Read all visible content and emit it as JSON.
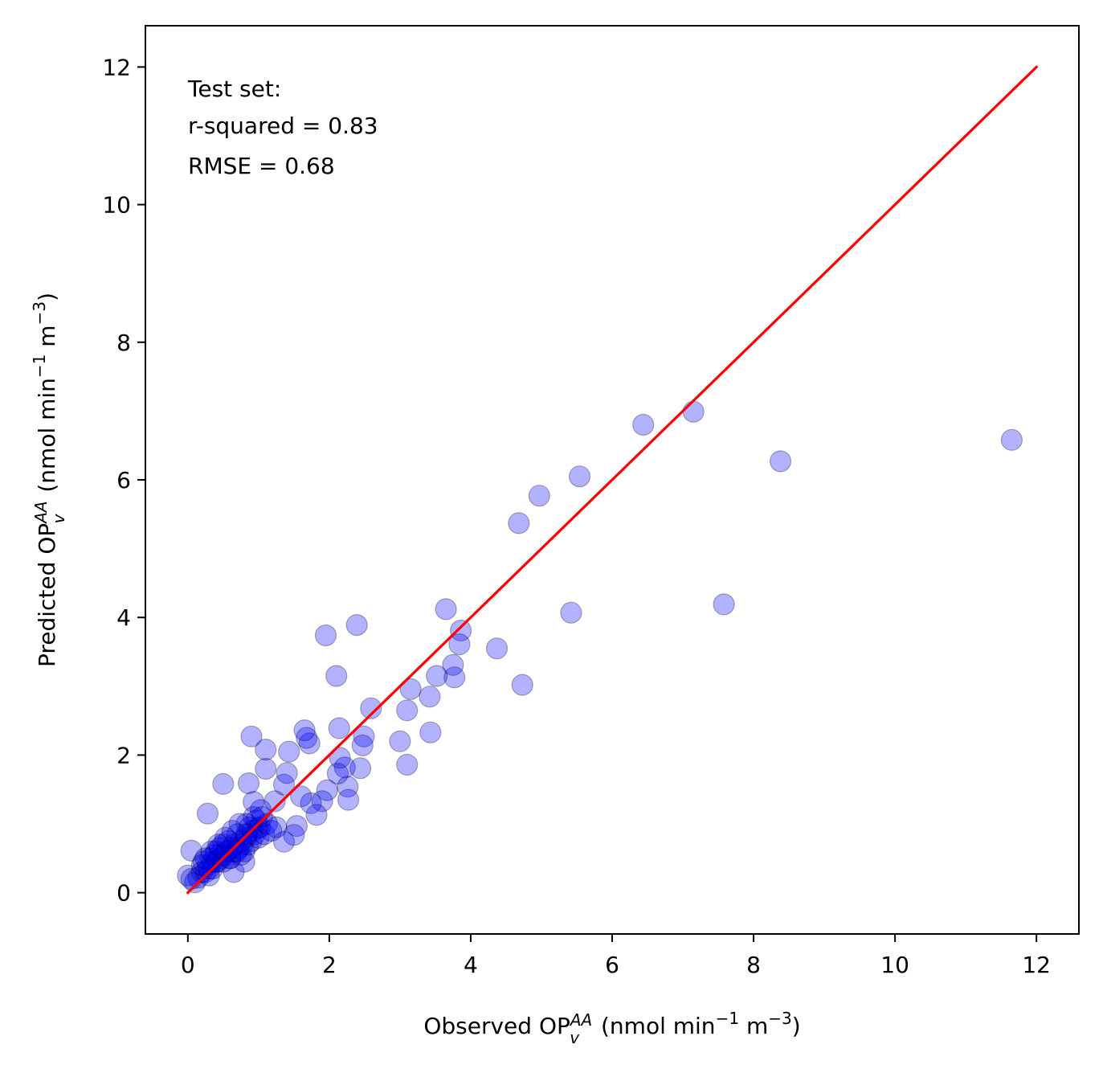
{
  "chart_data": {
    "type": "scatter",
    "xlabel": {
      "pre": "Observed OP",
      "sup": "AA",
      "sub": "v",
      "unit_a": " (nmol min",
      "unit_exp1": "−1",
      "unit_b": " m",
      "unit_exp2": "−3",
      "unit_c": ")"
    },
    "ylabel": {
      "pre": "Predicted OP",
      "sup": "AA",
      "sub": "v",
      "unit_a": " (nmol min",
      "unit_exp1": "−1",
      "unit_b": " m",
      "unit_exp2": "−3",
      "unit_c": ")"
    },
    "xlim": [
      -0.6,
      12.6
    ],
    "ylim": [
      -0.6,
      12.6
    ],
    "xticks": [
      0,
      2,
      4,
      6,
      8,
      10,
      12
    ],
    "yticks": [
      0,
      2,
      4,
      6,
      8,
      10,
      12
    ],
    "xtick_labels": [
      "0",
      "2",
      "4",
      "6",
      "8",
      "10",
      "12"
    ],
    "ytick_labels": [
      "0",
      "2",
      "4",
      "6",
      "8",
      "10",
      "12"
    ],
    "annotation": [
      "Test set:",
      "r-squared = 0.83",
      "RMSE = 0.68"
    ],
    "grid": false,
    "colors": {
      "points": "#0000ff",
      "line": "#ff0000"
    },
    "identity_line": {
      "x": [
        0,
        12
      ],
      "y": [
        0,
        12
      ]
    },
    "points": {
      "x": [
        11.65,
        8.38,
        7.58,
        7.15,
        6.44,
        5.54,
        5.42,
        4.97,
        4.68,
        4.73,
        4.37,
        3.86,
        3.84,
        3.77,
        3.75,
        3.65,
        3.52,
        3.42,
        3.43,
        3.15,
        3.1,
        3.1,
        3.0,
        2.59,
        2.49,
        2.47,
        2.44,
        2.39,
        2.26,
        2.27,
        2.22,
        2.12,
        2.15,
        2.1,
        2.14,
        1.95,
        1.97,
        1.9,
        1.82,
        1.74,
        1.72,
        1.68,
        1.65,
        1.6,
        1.54,
        1.5,
        1.43,
        1.4,
        1.36,
        1.36,
        1.23,
        1.1,
        1.1,
        0.99,
        0.93,
        0.9,
        0.86,
        0.83,
        0.5,
        0.28,
        0.05
      ],
      "y": [
        6.58,
        6.27,
        4.19,
        6.99,
        6.8,
        6.05,
        4.07,
        5.77,
        5.37,
        3.02,
        3.55,
        3.81,
        3.61,
        3.13,
        3.31,
        4.12,
        3.15,
        2.85,
        2.33,
        2.96,
        2.65,
        1.86,
        2.2,
        2.68,
        2.27,
        2.14,
        1.81,
        3.89,
        1.54,
        1.35,
        1.82,
        1.73,
        1.96,
        3.15,
        2.39,
        3.74,
        1.49,
        1.33,
        1.13,
        1.3,
        2.17,
        2.25,
        2.36,
        1.4,
        0.97,
        0.84,
        2.05,
        1.74,
        1.57,
        0.74,
        1.33,
        1.8,
        2.08,
        0.94,
        1.32,
        2.27,
        1.59,
        1.0,
        1.58,
        1.15,
        0.61
      ],
      "cluster_x": [
        0.0,
        0.05,
        0.1,
        0.15,
        0.2,
        0.22,
        0.25,
        0.28,
        0.3,
        0.32,
        0.35,
        0.38,
        0.4,
        0.42,
        0.45,
        0.47,
        0.5,
        0.52,
        0.55,
        0.57,
        0.6,
        0.62,
        0.65,
        0.67,
        0.7,
        0.72,
        0.75,
        0.77,
        0.8,
        0.82,
        0.85,
        0.87,
        0.9,
        0.92,
        0.95,
        0.97,
        1.0,
        1.02,
        1.05,
        1.08,
        1.12,
        1.18,
        1.25,
        0.3,
        0.35,
        0.4,
        0.45,
        0.5,
        0.55,
        0.6,
        0.65,
        0.7,
        0.75,
        0.8,
        0.2,
        0.25,
        0.33,
        0.43,
        0.53,
        0.63,
        0.73,
        0.83,
        0.93,
        1.03
      ],
      "cluster_y": [
        0.25,
        0.2,
        0.15,
        0.22,
        0.3,
        0.45,
        0.3,
        0.4,
        0.35,
        0.5,
        0.45,
        0.55,
        0.6,
        0.45,
        0.65,
        0.5,
        0.7,
        0.55,
        0.6,
        0.75,
        0.5,
        0.65,
        0.3,
        0.6,
        0.85,
        0.65,
        0.55,
        0.7,
        0.45,
        0.8,
        0.7,
        0.95,
        0.75,
        0.9,
        0.85,
        1.05,
        0.8,
        0.95,
        1.1,
        0.85,
        1.0,
        0.9,
        0.95,
        0.25,
        0.35,
        0.45,
        0.55,
        0.45,
        0.6,
        0.5,
        0.7,
        0.6,
        0.75,
        0.6,
        0.4,
        0.5,
        0.6,
        0.7,
        0.8,
        0.9,
        1.0,
        0.85,
        1.1,
        1.2
      ]
    }
  }
}
